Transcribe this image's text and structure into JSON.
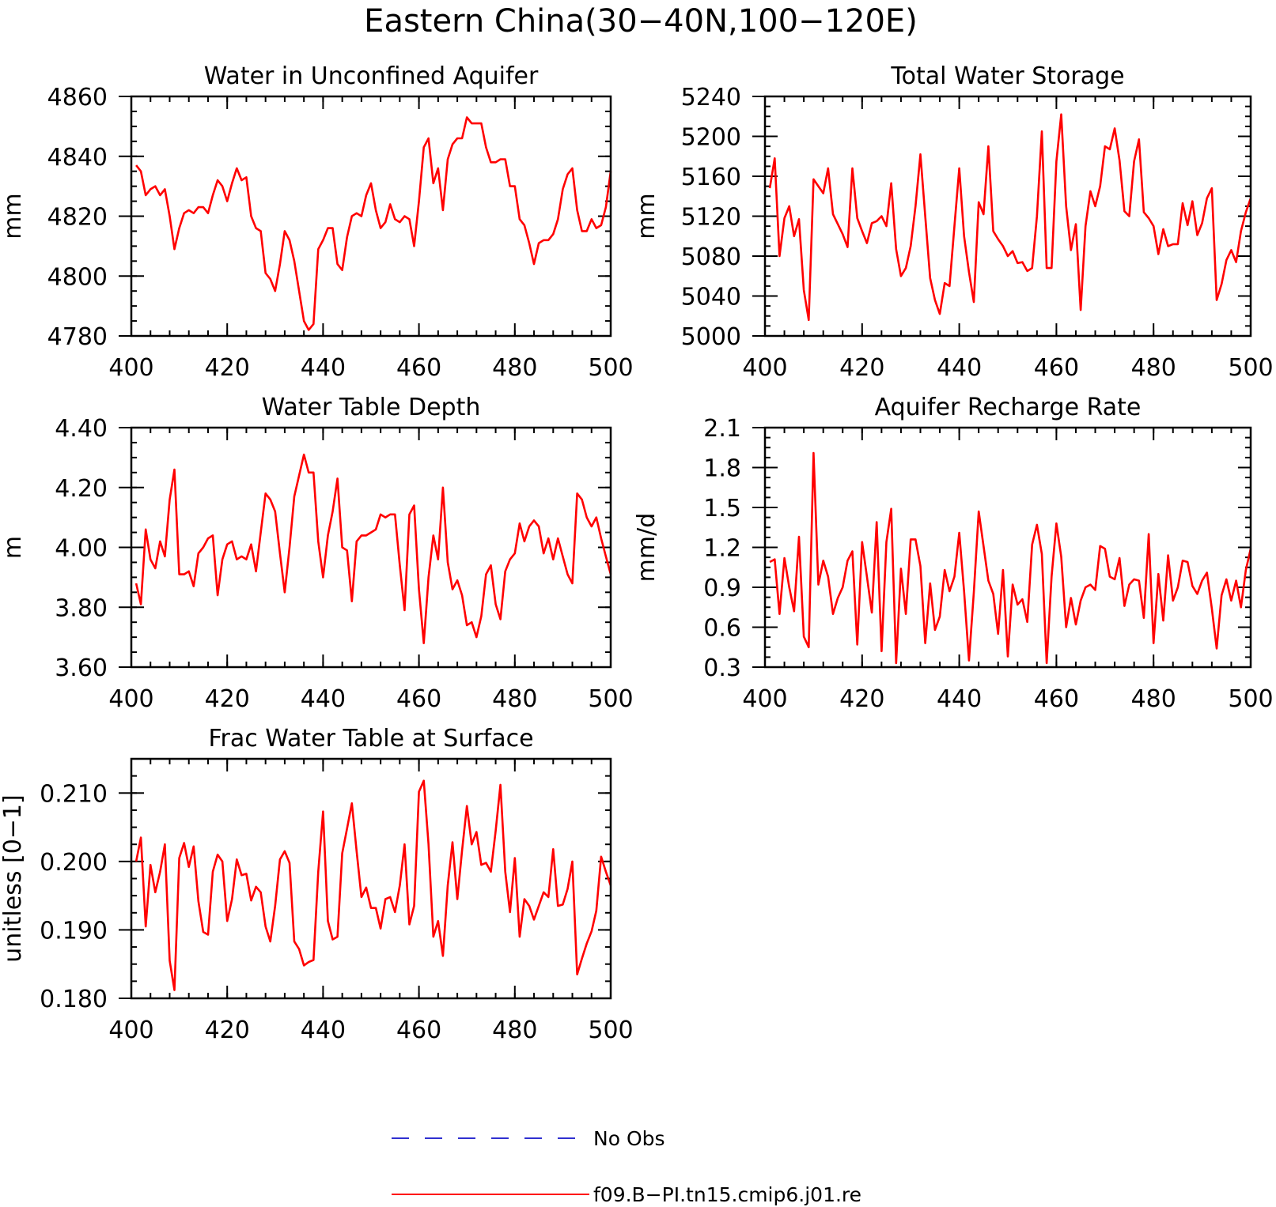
{
  "figure": {
    "title": "Eastern China(30−40N,100−120E)",
    "legend": [
      {
        "label": "No Obs",
        "color": "#3030d0",
        "style": "dashed"
      },
      {
        "label": "f09.B−PI.tn15.cmip6.j01.re",
        "color": "#ff0000",
        "style": "solid"
      }
    ]
  },
  "chart_data": [
    {
      "type": "line",
      "title": "Water in Unconfined Aquifer",
      "xlabel": "",
      "ylabel": "mm",
      "xlim": [
        400,
        500
      ],
      "ylim": [
        4780,
        4860
      ],
      "xticks": [
        400,
        420,
        440,
        460,
        480,
        500
      ],
      "yticks": [
        4780,
        4800,
        4820,
        4840,
        4860
      ],
      "ytick_labels": [
        "4780",
        "4800",
        "4820",
        "4840",
        "4860"
      ],
      "series": [
        {
          "color": "#ff0000",
          "x_start": 401,
          "x_step": 1,
          "values": [
            4837,
            4835,
            4827,
            4829,
            4830,
            4827,
            4829,
            4820,
            4809,
            4816,
            4821,
            4822,
            4821,
            4823,
            4823,
            4821,
            4827,
            4832,
            4830,
            4825,
            4831,
            4836,
            4832,
            4833,
            4820,
            4816,
            4815,
            4801,
            4799,
            4795,
            4804,
            4815,
            4812,
            4805,
            4795,
            4785,
            4782,
            4784,
            4809,
            4812,
            4816,
            4816,
            4804,
            4802,
            4813,
            4820,
            4821,
            4820,
            4827,
            4831,
            4822,
            4816,
            4818,
            4824,
            4819,
            4818,
            4820,
            4819,
            4810,
            4825,
            4843,
            4846,
            4831,
            4836,
            4822,
            4839,
            4844,
            4846,
            4846,
            4853,
            4851,
            4851,
            4851,
            4843,
            4838,
            4838,
            4839,
            4839,
            4830,
            4830,
            4819,
            4817,
            4811,
            4804,
            4811,
            4812,
            4812,
            4814,
            4819,
            4829,
            4834,
            4836,
            4822,
            4815,
            4815,
            4819,
            4816,
            4817,
            4823,
            4835
          ]
        }
      ]
    },
    {
      "type": "line",
      "title": "Total Water Storage",
      "xlabel": "",
      "ylabel": "mm",
      "xlim": [
        400,
        500
      ],
      "ylim": [
        5000,
        5240
      ],
      "xticks": [
        400,
        420,
        440,
        460,
        480,
        500
      ],
      "yticks": [
        5000,
        5040,
        5080,
        5120,
        5160,
        5200,
        5240
      ],
      "ytick_labels": [
        "5000",
        "5040",
        "5080",
        "5120",
        "5160",
        "5200",
        "5240"
      ],
      "series": [
        {
          "color": "#ff0000",
          "x_start": 401,
          "x_step": 1,
          "values": [
            5148,
            5178,
            5080,
            5118,
            5130,
            5100,
            5117,
            5046,
            5016,
            5157,
            5150,
            5143,
            5168,
            5122,
            5112,
            5102,
            5089,
            5168,
            5118,
            5105,
            5093,
            5113,
            5115,
            5120,
            5110,
            5153,
            5087,
            5060,
            5068,
            5090,
            5130,
            5182,
            5120,
            5058,
            5036,
            5022,
            5053,
            5050,
            5110,
            5168,
            5100,
            5064,
            5034,
            5134,
            5122,
            5190,
            5105,
            5097,
            5090,
            5080,
            5085,
            5073,
            5074,
            5065,
            5068,
            5120,
            5205,
            5068,
            5068,
            5175,
            5222,
            5130,
            5086,
            5112,
            5026,
            5110,
            5145,
            5130,
            5150,
            5190,
            5187,
            5208,
            5176,
            5125,
            5120,
            5175,
            5197,
            5124,
            5118,
            5110,
            5082,
            5107,
            5090,
            5092,
            5092,
            5133,
            5111,
            5135,
            5101,
            5113,
            5138,
            5148,
            5036,
            5052,
            5076,
            5086,
            5074,
            5105,
            5124,
            5138
          ]
        }
      ]
    },
    {
      "type": "line",
      "title": "Water Table Depth",
      "xlabel": "",
      "ylabel": "m",
      "xlim": [
        400,
        500
      ],
      "ylim": [
        3.6,
        4.4
      ],
      "xticks": [
        400,
        420,
        440,
        460,
        480,
        500
      ],
      "yticks": [
        3.6,
        3.8,
        4.0,
        4.2,
        4.4
      ],
      "ytick_labels": [
        "3.60",
        "3.80",
        "4.00",
        "4.20",
        "4.40"
      ],
      "series": [
        {
          "color": "#ff0000",
          "x_start": 401,
          "x_step": 1,
          "values": [
            3.88,
            3.81,
            4.06,
            3.96,
            3.93,
            4.02,
            3.97,
            4.16,
            4.26,
            3.91,
            3.91,
            3.92,
            3.87,
            3.98,
            4.0,
            4.03,
            4.04,
            3.84,
            3.96,
            4.01,
            4.02,
            3.96,
            3.97,
            3.96,
            4.01,
            3.92,
            4.05,
            4.18,
            4.16,
            4.12,
            3.98,
            3.85,
            4.0,
            4.17,
            4.24,
            4.31,
            4.25,
            4.25,
            4.02,
            3.9,
            4.04,
            4.12,
            4.23,
            4.0,
            3.99,
            3.82,
            4.02,
            4.04,
            4.04,
            4.05,
            4.06,
            4.11,
            4.1,
            4.11,
            4.11,
            3.94,
            3.79,
            4.11,
            4.14,
            3.86,
            3.68,
            3.9,
            4.04,
            3.96,
            4.2,
            3.95,
            3.86,
            3.89,
            3.84,
            3.74,
            3.75,
            3.7,
            3.77,
            3.91,
            3.94,
            3.81,
            3.76,
            3.92,
            3.96,
            3.98,
            4.08,
            4.02,
            4.07,
            4.09,
            4.07,
            3.98,
            4.03,
            3.96,
            4.03,
            3.97,
            3.91,
            3.88,
            4.18,
            4.16,
            4.1,
            4.07,
            4.1,
            4.03,
            3.97,
            3.91
          ]
        }
      ]
    },
    {
      "type": "line",
      "title": "Aquifer Recharge Rate",
      "xlabel": "",
      "ylabel": "mm/d",
      "xlim": [
        400,
        500
      ],
      "ylim": [
        0.3,
        2.1
      ],
      "xticks": [
        400,
        420,
        440,
        460,
        480,
        500
      ],
      "yticks": [
        0.3,
        0.6,
        0.9,
        1.2,
        1.5,
        1.8,
        2.1
      ],
      "ytick_labels": [
        "0.3",
        "0.6",
        "0.9",
        "1.2",
        "1.5",
        "1.8",
        "2.1"
      ],
      "series": [
        {
          "color": "#ff0000",
          "x_start": 401,
          "x_step": 1,
          "values": [
            1.09,
            1.11,
            0.7,
            1.12,
            0.9,
            0.72,
            1.28,
            0.53,
            0.45,
            1.91,
            0.92,
            1.1,
            0.98,
            0.7,
            0.82,
            0.9,
            1.1,
            1.17,
            0.47,
            1.24,
            0.98,
            0.71,
            1.39,
            0.42,
            1.24,
            1.49,
            0.33,
            1.04,
            0.7,
            1.26,
            1.26,
            1.06,
            0.48,
            0.93,
            0.58,
            0.68,
            1.03,
            0.87,
            0.98,
            1.31,
            0.87,
            0.35,
            0.86,
            1.47,
            1.21,
            0.95,
            0.85,
            0.55,
            1.03,
            0.38,
            0.92,
            0.77,
            0.81,
            0.64,
            1.22,
            1.37,
            1.15,
            0.33,
            0.98,
            1.38,
            1.13,
            0.6,
            0.82,
            0.62,
            0.8,
            0.9,
            0.92,
            0.88,
            1.21,
            1.19,
            0.98,
            0.96,
            1.12,
            0.76,
            0.92,
            0.96,
            0.95,
            0.67,
            1.3,
            0.48,
            1.0,
            0.65,
            1.14,
            0.8,
            0.9,
            1.1,
            1.09,
            0.91,
            0.85,
            0.95,
            1.01,
            0.74,
            0.44,
            0.84,
            0.96,
            0.8,
            0.95,
            0.75,
            1.03,
            1.19
          ]
        }
      ]
    },
    {
      "type": "line",
      "title": "Frac Water Table at Surface",
      "xlabel": "",
      "ylabel": "unitless [0−1]",
      "xlim": [
        400,
        500
      ],
      "ylim": [
        0.18,
        0.215
      ],
      "xticks": [
        400,
        420,
        440,
        460,
        480,
        500
      ],
      "yticks": [
        0.18,
        0.19,
        0.2,
        0.21
      ],
      "ytick_labels": [
        "0.180",
        "0.190",
        "0.200",
        "0.210"
      ],
      "series": [
        {
          "color": "#ff0000",
          "x_start": 401,
          "x_step": 1,
          "values": [
            0.2,
            0.2035,
            0.1905,
            0.1995,
            0.1955,
            0.1985,
            0.2025,
            0.1855,
            0.1812,
            0.2005,
            0.2027,
            0.1992,
            0.2022,
            0.1942,
            0.1897,
            0.1893,
            0.1985,
            0.201,
            0.2,
            0.1913,
            0.1945,
            0.2003,
            0.198,
            0.1982,
            0.1943,
            0.1963,
            0.1955,
            0.1905,
            0.1883,
            0.1935,
            0.2003,
            0.2015,
            0.1998,
            0.1883,
            0.1872,
            0.1848,
            0.1853,
            0.1856,
            0.1985,
            0.2073,
            0.1913,
            0.1886,
            0.189,
            0.2012,
            0.2048,
            0.2085,
            0.2015,
            0.1948,
            0.1962,
            0.1932,
            0.1932,
            0.1902,
            0.1945,
            0.1948,
            0.1926,
            0.1965,
            0.2025,
            0.1908,
            0.1935,
            0.2102,
            0.2118,
            0.2025,
            0.189,
            0.1913,
            0.1862,
            0.1965,
            0.2028,
            0.1945,
            0.2016,
            0.2081,
            0.2025,
            0.2043,
            0.1995,
            0.1998,
            0.1985,
            0.2045,
            0.2112,
            0.1985,
            0.1926,
            0.2005,
            0.189,
            0.1945,
            0.1935,
            0.1915,
            0.1935,
            0.1955,
            0.1948,
            0.2018,
            0.1935,
            0.1937,
            0.196,
            0.2,
            0.1835,
            0.1858,
            0.188,
            0.1898,
            0.1928,
            0.2007,
            0.1985,
            0.1965
          ]
        }
      ]
    }
  ]
}
